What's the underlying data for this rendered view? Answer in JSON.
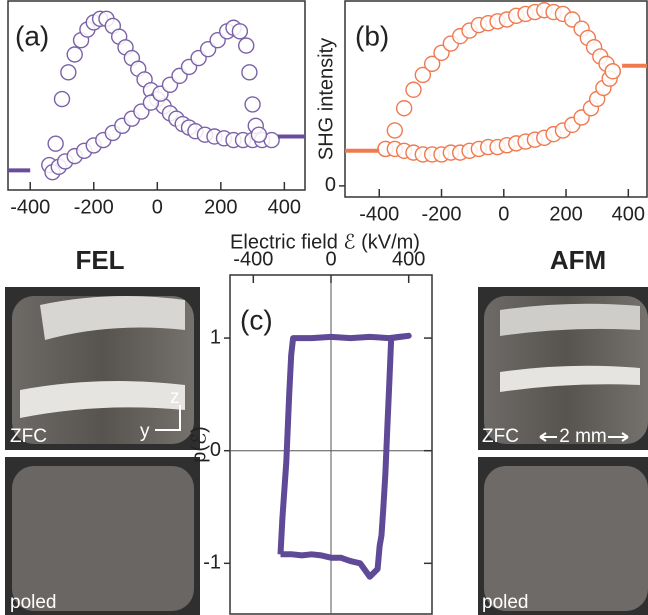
{
  "chart_data": [
    {
      "type": "scatter",
      "label": "(a)",
      "xlim": [
        -470,
        465
      ],
      "ylim": [
        -0.06,
        1.0
      ],
      "xticks": [
        -400,
        -200,
        0,
        200,
        400
      ],
      "series": [
        {
          "style": "markers",
          "color": "#7b62a8",
          "x": [
            -340,
            -320,
            -300,
            -280,
            -260,
            -240,
            -220,
            -200,
            -180,
            -160,
            -140,
            -120,
            -100,
            -80,
            -60,
            -40,
            -20,
            0,
            20,
            40,
            60,
            80,
            100,
            120,
            150,
            180,
            210,
            240,
            270,
            300,
            330,
            360
          ],
          "values": [
            0.08,
            0.2,
            0.45,
            0.6,
            0.7,
            0.78,
            0.84,
            0.88,
            0.9,
            0.9,
            0.86,
            0.8,
            0.74,
            0.68,
            0.62,
            0.56,
            0.5,
            0.45,
            0.41,
            0.37,
            0.34,
            0.31,
            0.29,
            0.27,
            0.25,
            0.24,
            0.23,
            0.22,
            0.22,
            0.22,
            0.22,
            0.22
          ]
        },
        {
          "style": "markers",
          "color": "#7b62a8",
          "x": [
            -330,
            -310,
            -290,
            -260,
            -230,
            -200,
            -170,
            -140,
            -110,
            -80,
            -50,
            -20,
            10,
            40,
            70,
            100,
            130,
            160,
            190,
            220,
            240,
            260,
            280,
            290,
            300,
            310,
            320
          ],
          "values": [
            0.04,
            0.07,
            0.1,
            0.13,
            0.16,
            0.19,
            0.22,
            0.26,
            0.3,
            0.34,
            0.38,
            0.43,
            0.48,
            0.53,
            0.58,
            0.63,
            0.68,
            0.73,
            0.78,
            0.83,
            0.85,
            0.83,
            0.75,
            0.6,
            0.42,
            0.3,
            0.25
          ]
        },
        {
          "style": "line",
          "color": "#6a4c9c",
          "x": [
            -470,
            -400
          ],
          "values": [
            0.05,
            0.05
          ]
        },
        {
          "style": "line",
          "color": "#6a4c9c",
          "x": [
            380,
            465
          ],
          "values": [
            0.24,
            0.24
          ]
        }
      ]
    },
    {
      "type": "scatter",
      "label": "(b)",
      "ylabel": "SHG intensity",
      "xlim": [
        -510,
        460
      ],
      "ylim": [
        -0.06,
        1.0
      ],
      "xticks": [
        -400,
        -200,
        0,
        200,
        400
      ],
      "yticks": [
        0
      ],
      "series": [
        {
          "style": "markers",
          "color": "#f07a50",
          "x": [
            -380,
            -350,
            -320,
            -290,
            -260,
            -230,
            -200,
            -170,
            -140,
            -110,
            -80,
            -50,
            -20,
            10,
            40,
            70,
            100,
            130,
            160,
            190,
            220,
            250,
            270,
            290,
            310,
            330,
            350
          ],
          "values": [
            0.2,
            0.3,
            0.42,
            0.52,
            0.6,
            0.66,
            0.72,
            0.77,
            0.81,
            0.84,
            0.87,
            0.88,
            0.89,
            0.9,
            0.92,
            0.93,
            0.94,
            0.95,
            0.94,
            0.93,
            0.9,
            0.85,
            0.8,
            0.75,
            0.7,
            0.66,
            0.62
          ]
        },
        {
          "style": "markers",
          "color": "#f07a50",
          "x": [
            -380,
            -350,
            -320,
            -290,
            -260,
            -230,
            -200,
            -170,
            -140,
            -110,
            -80,
            -50,
            -20,
            10,
            40,
            70,
            100,
            130,
            160,
            190,
            220,
            250,
            280,
            300,
            320,
            340,
            350
          ],
          "values": [
            0.2,
            0.2,
            0.19,
            0.18,
            0.17,
            0.17,
            0.17,
            0.18,
            0.18,
            0.19,
            0.2,
            0.21,
            0.21,
            0.22,
            0.23,
            0.24,
            0.25,
            0.26,
            0.28,
            0.3,
            0.33,
            0.37,
            0.42,
            0.47,
            0.53,
            0.58,
            0.62
          ]
        },
        {
          "style": "line",
          "color": "#f07a50",
          "x": [
            -510,
            -400
          ],
          "values": [
            0.19,
            0.19
          ]
        },
        {
          "style": "line",
          "color": "#f07a50",
          "x": [
            380,
            460
          ],
          "values": [
            0.65,
            0.65
          ]
        }
      ]
    },
    {
      "type": "line",
      "label": "(c)",
      "ylabel": "p(ℰ)",
      "xlim": [
        -520,
        520
      ],
      "ylim": [
        -1.45,
        1.56
      ],
      "xticks": [
        -400,
        0,
        400
      ],
      "yticks": [
        -1,
        0,
        1
      ],
      "origin_lines": true,
      "series": [
        {
          "style": "line",
          "color": "#5e4a96",
          "x": [
            -260,
            -250,
            -230,
            -215,
            -205,
            -195,
            -100,
            0,
            100,
            200,
            300,
            350,
            400,
            310,
            300,
            290,
            280,
            270,
            260,
            250,
            240,
            200,
            150,
            100,
            50,
            0,
            -50,
            -100,
            -150,
            -200,
            -260
          ],
          "values": [
            -0.92,
            -0.6,
            -0.1,
            0.5,
            0.85,
            1.0,
            1.0,
            1.01,
            1.0,
            1.01,
            1.0,
            1.01,
            1.02,
            1.0,
            0.6,
            0.2,
            -0.2,
            -0.5,
            -0.75,
            -0.85,
            -1.05,
            -1.12,
            -1.0,
            -0.98,
            -0.95,
            -0.95,
            -0.93,
            -0.92,
            -0.93,
            -0.92,
            -0.92
          ]
        }
      ]
    }
  ],
  "xlabel": "Electric field ℰ (kV/m)",
  "photos": {
    "left_title": "FEL",
    "right_title": "AFM",
    "left_top": "ZFC",
    "left_bottom": "poled",
    "axis_z": "z",
    "axis_y": "y",
    "right_top": "ZFC",
    "scale": "2 mm",
    "right_bottom": "poled"
  }
}
